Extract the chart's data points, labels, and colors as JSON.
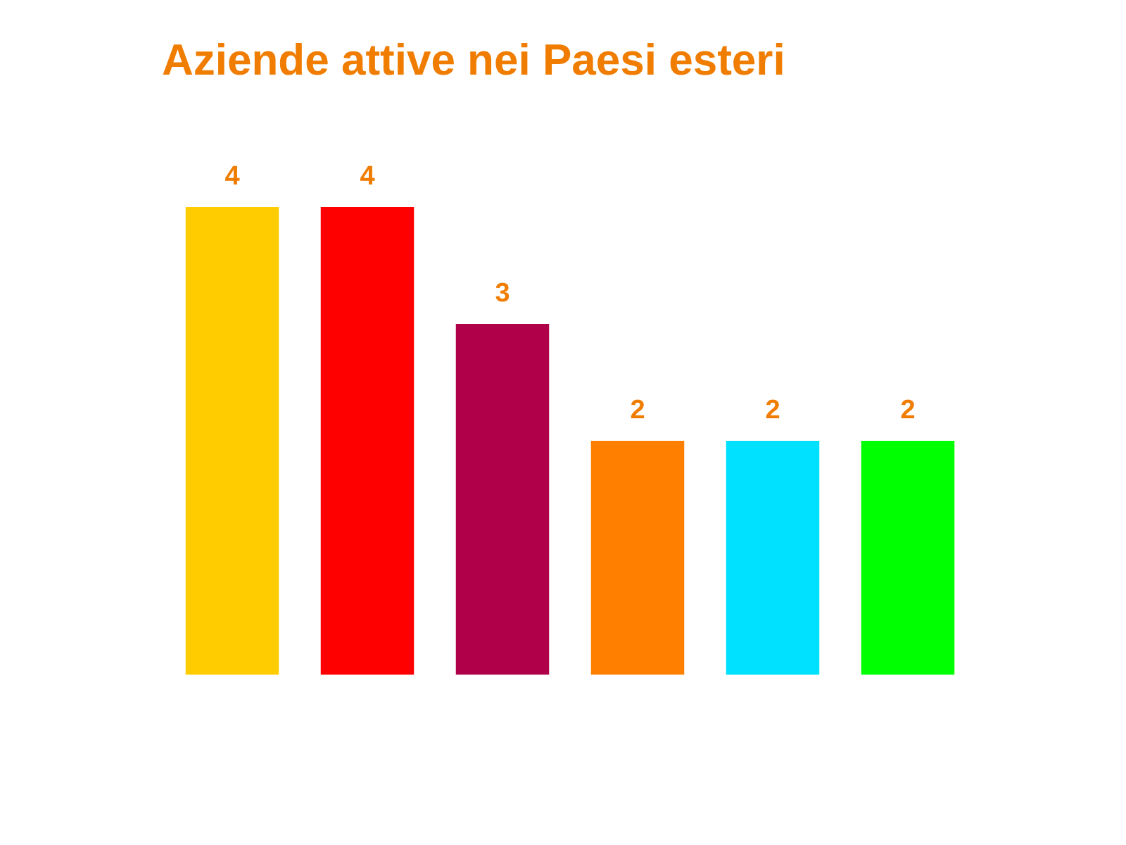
{
  "chart_data": {
    "type": "bar",
    "title": "Aziende attive nei Paesi esteri",
    "categories": [
      null,
      null,
      null,
      null,
      null,
      null
    ],
    "values": [
      4,
      4,
      3,
      2,
      2,
      2
    ],
    "colors": [
      "#ffcc00",
      "#ff0000",
      "#b0004a",
      "#ff8000",
      "#00e0ff",
      "#00ff00"
    ],
    "data_labels": true
  }
}
